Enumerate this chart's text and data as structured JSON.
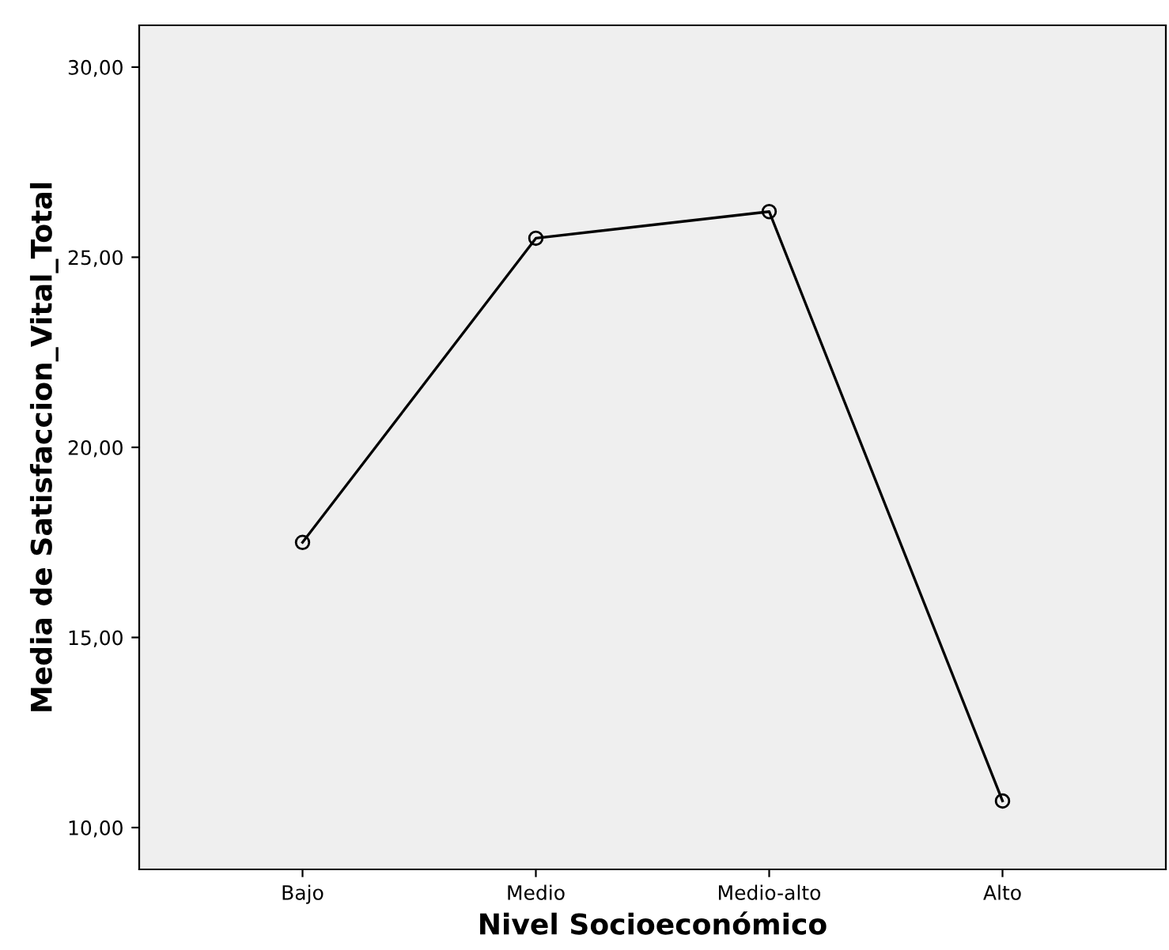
{
  "chart_data": {
    "type": "line",
    "xlabel": "Nivel Socioeconómico",
    "ylabel": "Media de Satisfaccion_Vital_Total",
    "categories": [
      "Bajo",
      "Medio",
      "Medio-alto",
      "Alto"
    ],
    "series": [
      {
        "color": "#000000",
        "values": [
          17.5,
          25.5,
          26.2,
          10.7
        ]
      }
    ],
    "ylim": [
      8.9,
      31.1
    ],
    "yticks": [
      {
        "value": 10,
        "label": "10,00"
      },
      {
        "value": 15,
        "label": "15,00"
      },
      {
        "value": 20,
        "label": "20,00"
      },
      {
        "value": 25,
        "label": "25,00"
      },
      {
        "value": 30,
        "label": "30,00"
      }
    ],
    "marker": "circle",
    "line_style": "solid",
    "grid": false,
    "legend": false
  }
}
